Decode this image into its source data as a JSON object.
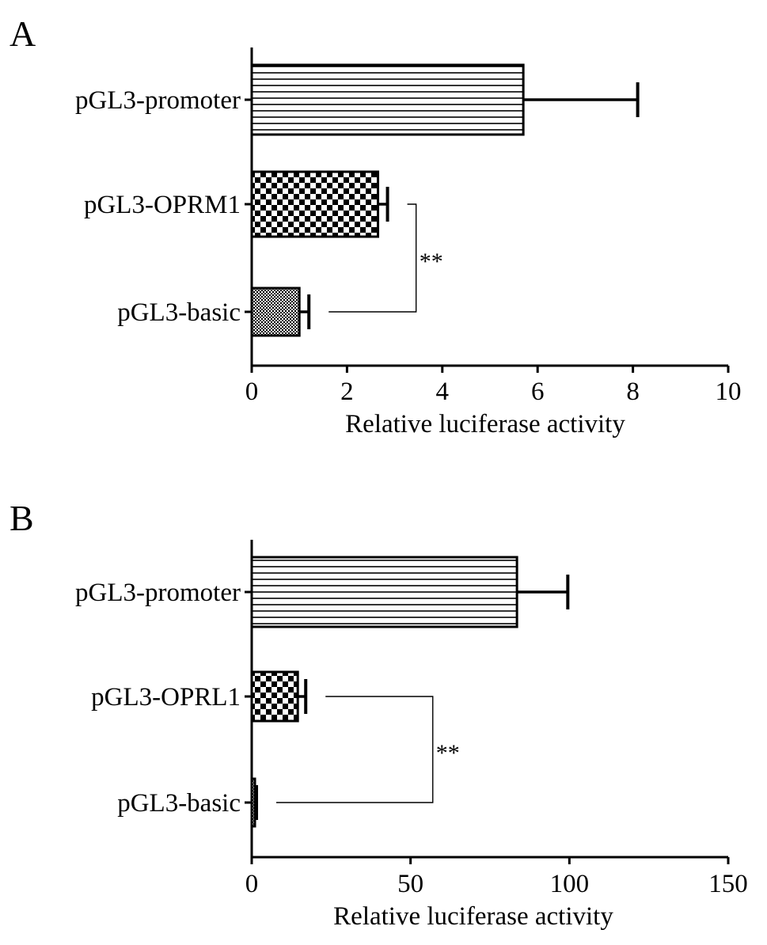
{
  "chart_data": [
    {
      "panel": "A",
      "type": "bar",
      "orientation": "horizontal",
      "categories": [
        "pGL3-promoter",
        "pGL3-OPRM1",
        "pGL3-basic"
      ],
      "series": [
        {
          "values": [
            5.7,
            2.65,
            1.0
          ],
          "errors": [
            2.4,
            0.2,
            0.2
          ]
        }
      ],
      "bar_patterns": [
        "horizontal-lines",
        "checkerboard",
        "fine-dots"
      ],
      "xlabel": "Relative luciferase activity",
      "xlim": [
        0,
        10
      ],
      "xticks": [
        0,
        2,
        4,
        6,
        8,
        10
      ],
      "grid": false,
      "significance": {
        "between": [
          "pGL3-OPRM1",
          "pGL3-basic"
        ],
        "label": "**",
        "bracket_x": 3.45
      }
    },
    {
      "panel": "B",
      "type": "bar",
      "orientation": "horizontal",
      "categories": [
        "pGL3-promoter",
        "pGL3-OPRL1",
        "pGL3-basic"
      ],
      "series": [
        {
          "values": [
            83.5,
            14.5,
            1.0
          ],
          "errors": [
            16,
            2.5,
            0.5
          ]
        }
      ],
      "bar_patterns": [
        "horizontal-lines",
        "checkerboard",
        "fine-dots"
      ],
      "xlabel": "Relative luciferase activity",
      "xlim": [
        0,
        150
      ],
      "xticks": [
        0,
        50,
        100,
        150
      ],
      "grid": false,
      "significance": {
        "between": [
          "pGL3-OPRL1",
          "pGL3-basic"
        ],
        "label": "**",
        "bracket_x": 57
      }
    }
  ]
}
